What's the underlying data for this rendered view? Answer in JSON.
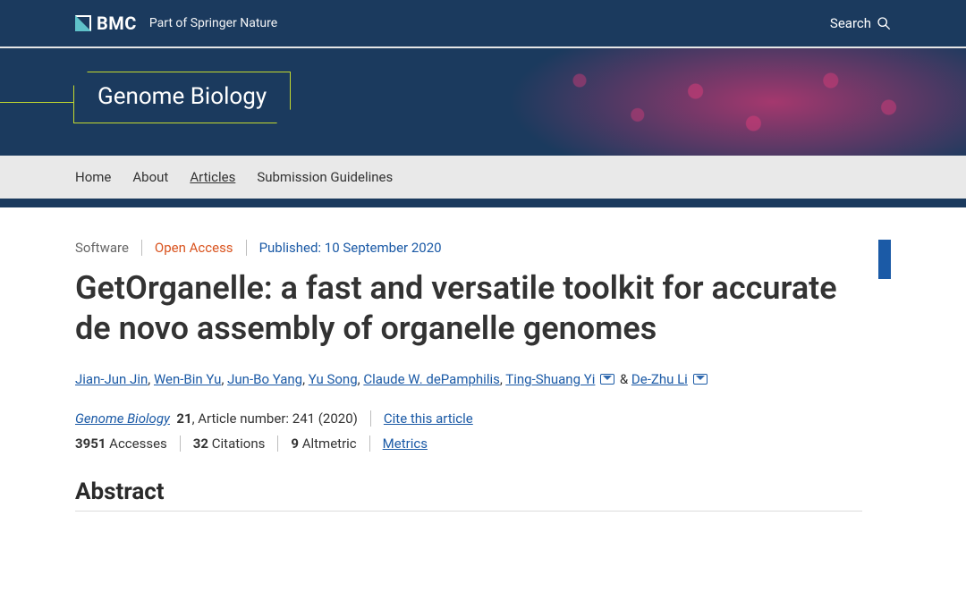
{
  "header": {
    "brand": "BMC",
    "tagline": "Part of Springer Nature",
    "search_label": "Search"
  },
  "journal": {
    "name": "Genome Biology"
  },
  "nav": {
    "items": [
      "Home",
      "About",
      "Articles",
      "Submission Guidelines"
    ],
    "active_index": 2
  },
  "article": {
    "type": "Software",
    "access": "Open Access",
    "published_label": "Published: 10 September 2020",
    "title": "GetOrganelle: a fast and versatile toolkit for accurate de novo assembly of organelle genomes",
    "authors": [
      {
        "name": "Jian-Jun Jin",
        "corresponding": false
      },
      {
        "name": "Wen-Bin Yu",
        "corresponding": false
      },
      {
        "name": "Jun-Bo Yang",
        "corresponding": false
      },
      {
        "name": "Yu Song",
        "corresponding": false
      },
      {
        "name": "Claude W. dePamphilis",
        "corresponding": false
      },
      {
        "name": "Ting-Shuang Yi",
        "corresponding": true
      },
      {
        "name": "De-Zhu Li",
        "corresponding": true
      }
    ],
    "citation": {
      "journal": "Genome Biology",
      "volume": "21",
      "article_number_label": ", Article number:",
      "article_number": "241",
      "year": "(2020)",
      "cite_link": "Cite this article"
    },
    "metrics": {
      "accesses": "3951",
      "accesses_label": "Accesses",
      "citations": "32",
      "citations_label": "Citations",
      "altmetric": "9",
      "altmetric_label": "Altmetric",
      "metrics_link": "Metrics"
    },
    "abstract_heading": "Abstract"
  },
  "colors": {
    "header_bg": "#1b3a5e",
    "accent_lime": "#c4d92e",
    "link_blue": "#1b5aa6",
    "open_access": "#d9531e",
    "softgray": "#666666"
  }
}
